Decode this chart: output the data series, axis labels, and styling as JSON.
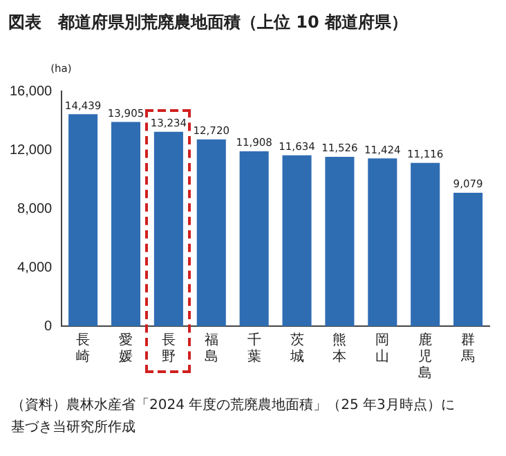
{
  "chart_data": {
    "type": "bar",
    "title": "図表　都道府県別荒廃農地面積（上位 10 都道府県）",
    "ylabel": "(ha)",
    "categories": [
      "長崎",
      "愛媛",
      "長野",
      "福島",
      "千葉",
      "茨城",
      "熊本",
      "岡山",
      "鹿児島",
      "群馬"
    ],
    "values": [
      14439,
      13905,
      13234,
      12720,
      11908,
      11634,
      11526,
      11424,
      11116,
      9079
    ],
    "value_labels": [
      "14,439",
      "13,905",
      "13,234",
      "12,720",
      "11,908",
      "11,634",
      "11,526",
      "11,424",
      "11,116",
      "9,079"
    ],
    "color": "#2f6db3",
    "ylim": [
      0,
      16000
    ],
    "yticks": [
      {
        "value": 0,
        "label": "0"
      },
      {
        "value": 4000,
        "label": "4,000"
      },
      {
        "value": 8000,
        "label": "8,000"
      },
      {
        "value": 12000,
        "label": "12,000"
      },
      {
        "value": 16000,
        "label": "16,000"
      }
    ],
    "grid": false,
    "legend": false,
    "annotations": [
      "（資料）農林水産省「2024 年度の荒廃農地面積」（25 年3月時点）に",
      "基づき当研究所作成"
    ]
  }
}
